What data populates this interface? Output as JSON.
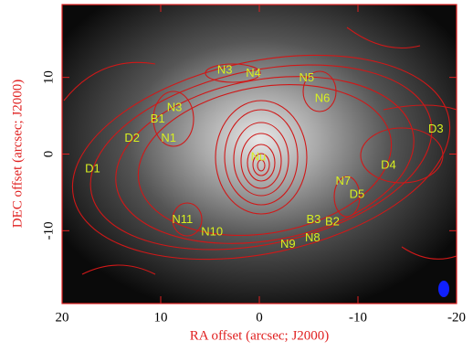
{
  "chart_data": {
    "type": "scatter",
    "xlabel": "RA offset (arcsec; J2000)",
    "ylabel": "DEC offset (arcsec; J2000)",
    "xlim": [
      20,
      -20
    ],
    "ylim": [
      -19.5,
      19.5
    ],
    "xticks": [
      20,
      10,
      0,
      -10,
      -20
    ],
    "yticks": [
      -10,
      0,
      10
    ],
    "color": "#d8f020",
    "labels": [
      "N3",
      "N4",
      "N5",
      "N6",
      "N3",
      "B1",
      "D2",
      "N1",
      "D1",
      "Nu",
      "D3",
      "D4",
      "N7",
      "D5",
      "B3",
      "B2",
      "N8",
      "N9",
      "N11",
      "N10"
    ],
    "x": [
      3.5,
      0.6,
      -4.8,
      -6.4,
      8.6,
      10.3,
      12.9,
      9.2,
      16.9,
      0.1,
      -17.9,
      -13.1,
      -8.5,
      -9.9,
      -5.5,
      -7.4,
      -5.4,
      -2.9,
      7.8,
      4.8
    ],
    "values": [
      10.9,
      10.5,
      9.9,
      7.2,
      6.0,
      4.5,
      2.0,
      2.0,
      -2.0,
      -0.4,
      3.2,
      -1.5,
      -3.6,
      -5.3,
      -8.6,
      -8.9,
      -11.0,
      -11.8,
      -8.6,
      -10.2
    ]
  }
}
